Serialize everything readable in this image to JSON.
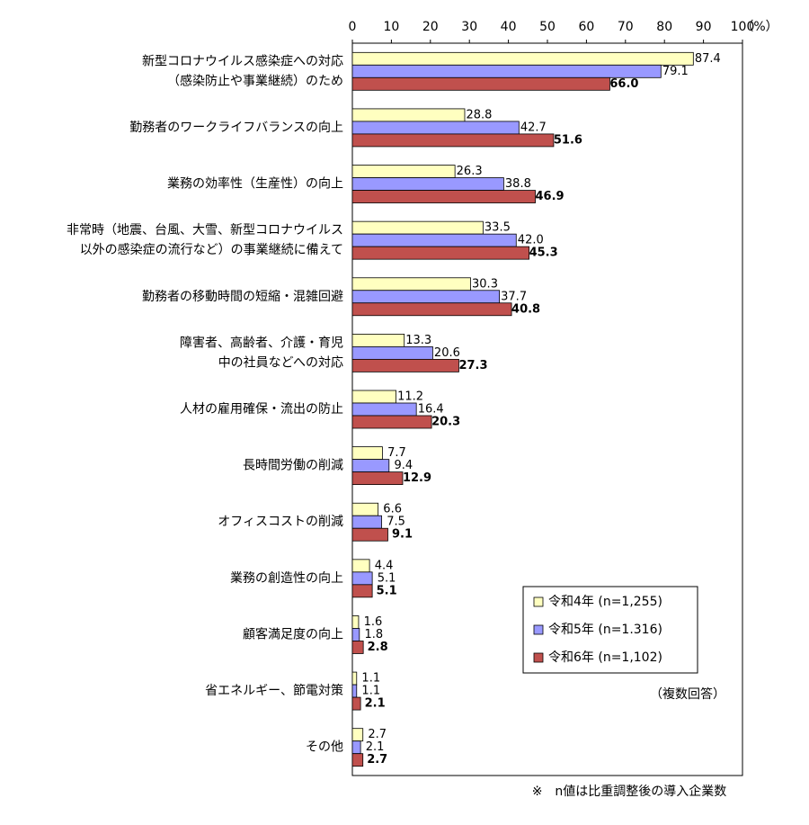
{
  "chart_data": {
    "type": "bar",
    "orientation": "horizontal",
    "unit_label": "（%）",
    "categories": [
      [
        "新型コロナウイルス感染症への対応",
        "（感染防止や事業継続）のため"
      ],
      [
        "勤務者のワークライフバランスの向上"
      ],
      [
        "業務の効率性（生産性）の向上"
      ],
      [
        "非常時（地震、台風、大雪、新型コロナウイルス",
        "以外の感染症の流行など）の事業継続に備えて"
      ],
      [
        "勤務者の移動時間の短縮・混雑回避"
      ],
      [
        "障害者、高齢者、介護・育児",
        "中の社員などへの対応"
      ],
      [
        "人材の雇用確保・流出の防止"
      ],
      [
        "長時間労働の削減"
      ],
      [
        "オフィスコストの削減"
      ],
      [
        "業務の創造性の向上"
      ],
      [
        "顧客満足度の向上"
      ],
      [
        "省エネルギー、節電対策"
      ],
      [
        "その他"
      ]
    ],
    "series": [
      {
        "name": "令和4年 (n=1,255)",
        "color": "#ffffc0",
        "values": [
          87.4,
          28.8,
          26.3,
          33.5,
          30.3,
          13.3,
          11.2,
          7.7,
          6.6,
          4.4,
          1.6,
          1.1,
          2.7
        ],
        "value_labels": [
          "87.4",
          "28.8",
          "26.3",
          "33.5",
          "30.3",
          "13.3",
          "11.2",
          "7.7",
          "6.6",
          "4.4",
          "1.6",
          "1.1",
          "2.7"
        ]
      },
      {
        "name": "令和5年 (n=1.316)",
        "color": "#9999ff",
        "values": [
          79.1,
          42.7,
          38.8,
          42.0,
          37.7,
          20.6,
          16.4,
          9.4,
          7.5,
          5.1,
          1.8,
          1.1,
          2.1
        ],
        "value_labels": [
          "79.1",
          "42.7",
          "38.8",
          "42.0",
          "37.7",
          "20.6",
          "16.4",
          "9.4",
          "7.5",
          "5.1",
          "1.8",
          "1.1",
          "2.1"
        ]
      },
      {
        "name": "令和6年 (n=1,102)",
        "color": "#c0504d",
        "bold_labels": true,
        "values": [
          66.0,
          51.6,
          46.9,
          45.3,
          40.8,
          27.3,
          20.3,
          12.9,
          9.1,
          5.1,
          2.8,
          2.1,
          2.7
        ],
        "value_labels": [
          "66.0",
          "51.6",
          "46.9",
          "45.3",
          "40.8",
          "27.3",
          "20.3",
          "12.9",
          "9.1",
          "5.1",
          "2.8",
          "2.1",
          "2.7"
        ]
      }
    ],
    "xlim": [
      0,
      100
    ],
    "xticks": [
      0,
      10,
      20,
      30,
      40,
      50,
      60,
      70,
      80,
      90,
      100
    ],
    "legend": "lower right",
    "notes": [
      "（複数回答）",
      "※　n値は比重調整後の導入企業数"
    ]
  }
}
